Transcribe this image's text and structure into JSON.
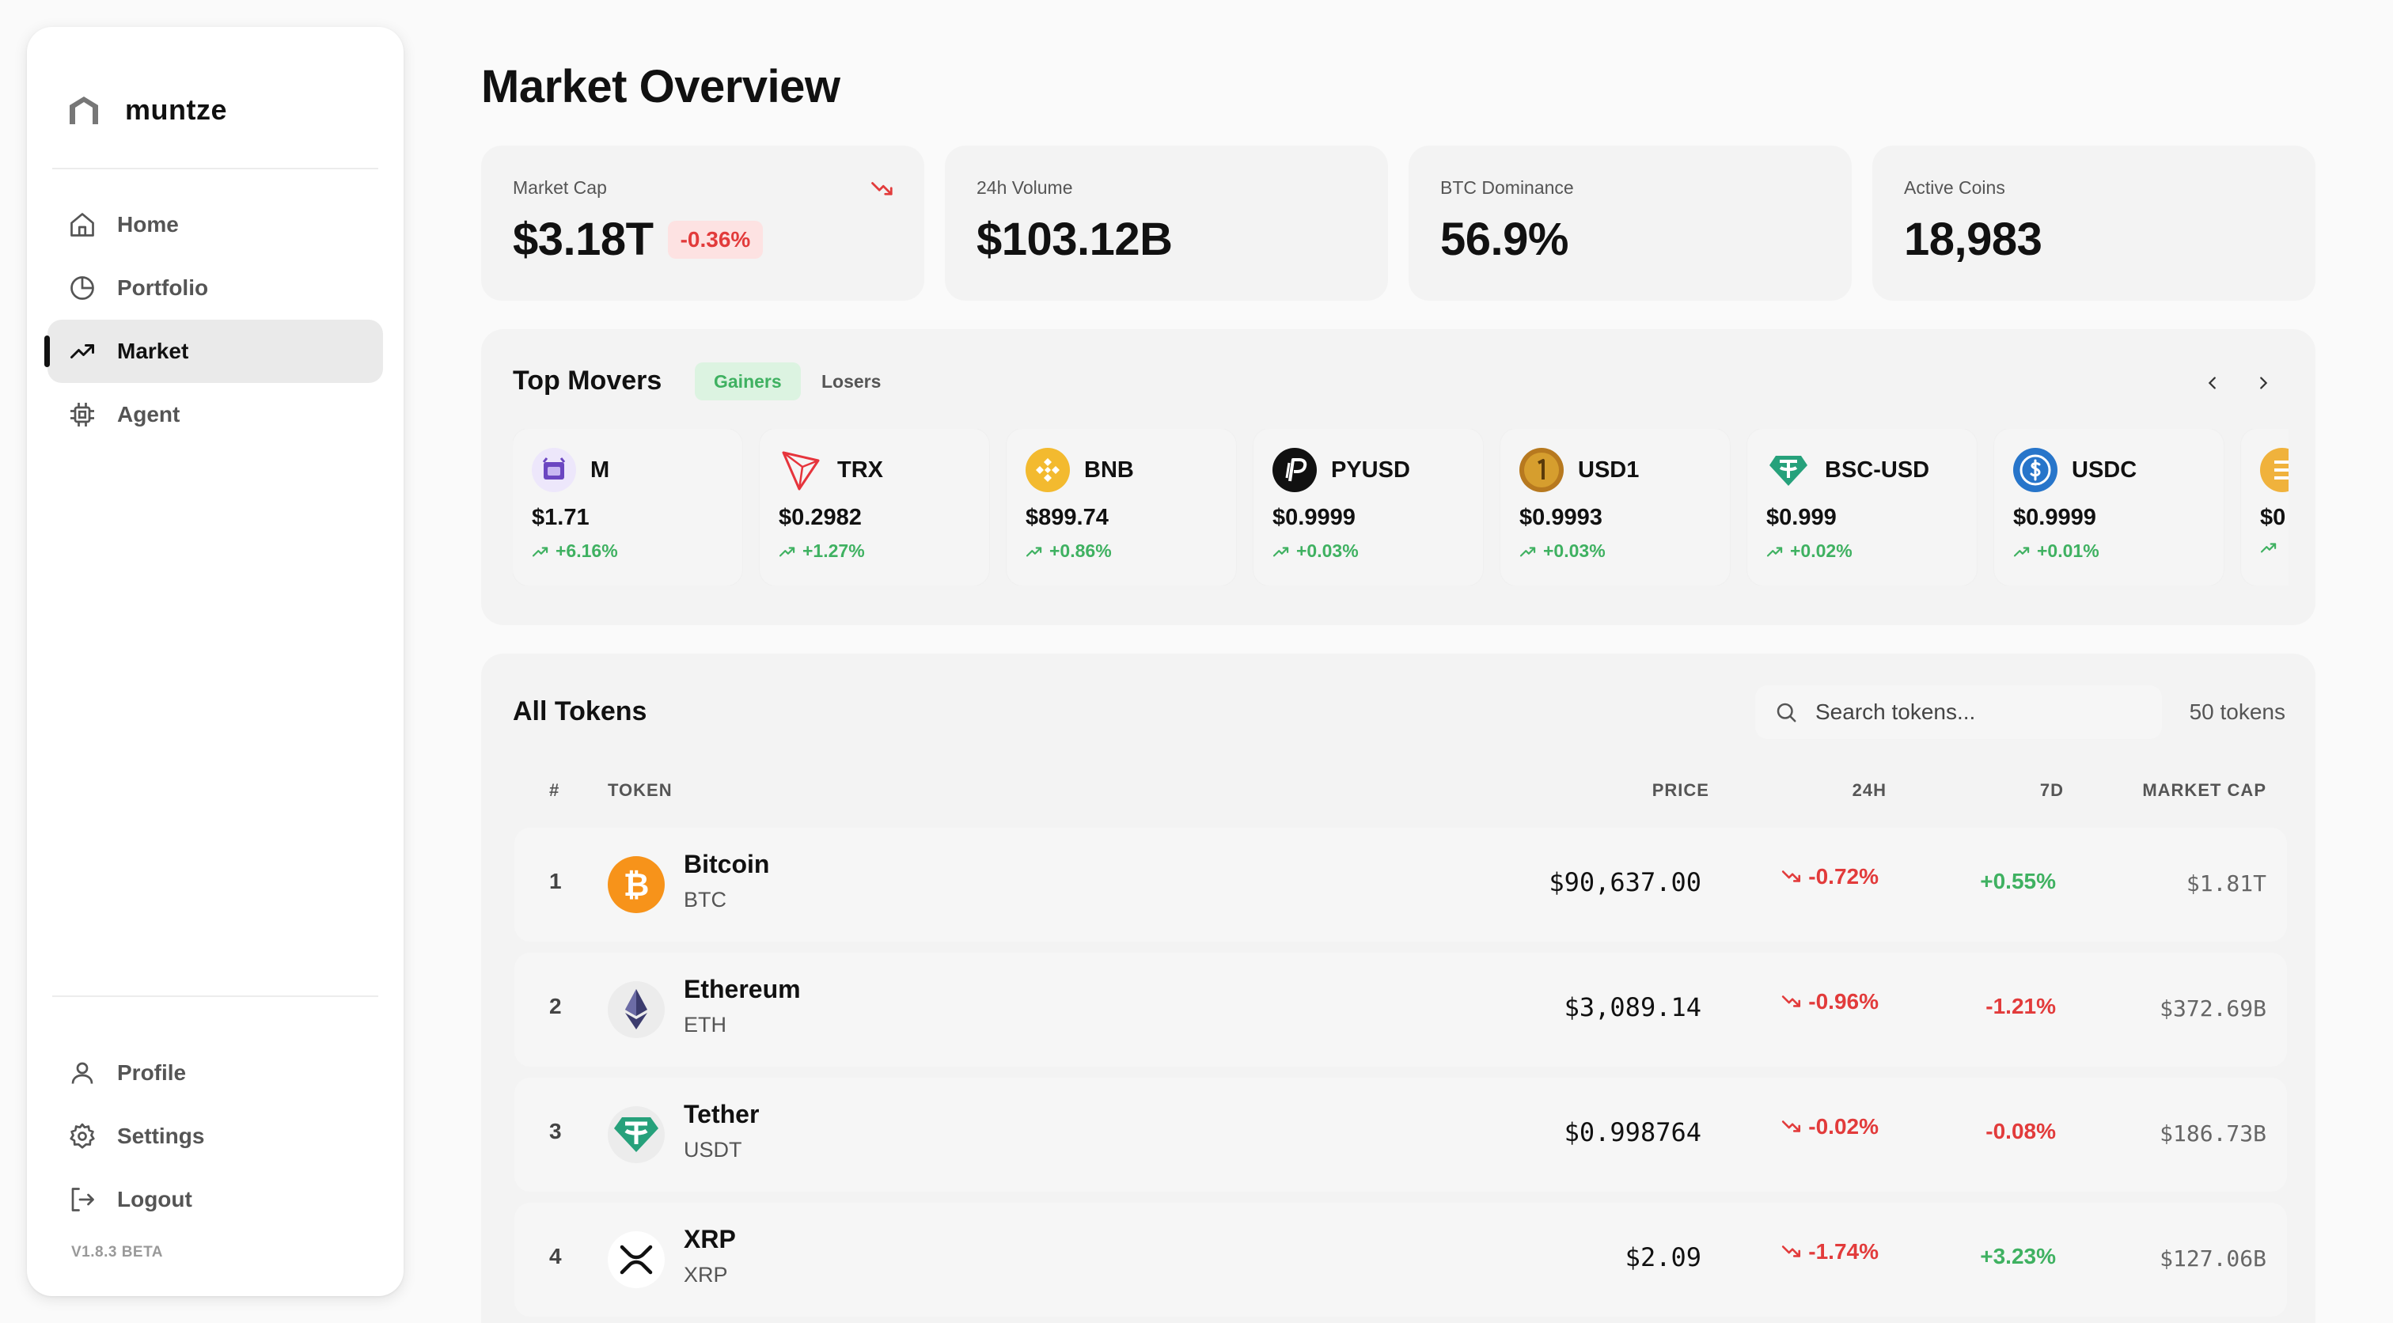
{
  "sidebar": {
    "brand": "muntze",
    "nav": [
      {
        "label": "Home",
        "icon": "home-icon"
      },
      {
        "label": "Portfolio",
        "icon": "pie-chart-icon"
      },
      {
        "label": "Market",
        "icon": "trending-up-icon",
        "active": true
      },
      {
        "label": "Agent",
        "icon": "chip-icon"
      }
    ],
    "bottom": [
      {
        "label": "Profile",
        "icon": "user-icon"
      },
      {
        "label": "Settings",
        "icon": "gear-icon"
      },
      {
        "label": "Logout",
        "icon": "logout-icon"
      }
    ],
    "version": "V1.8.3 BETA"
  },
  "header": {
    "title": "Market Overview"
  },
  "stats": [
    {
      "label": "Market Cap",
      "value": "$3.18T",
      "change": "-0.36%",
      "trend": "down"
    },
    {
      "label": "24h Volume",
      "value": "$103.12B"
    },
    {
      "label": "BTC Dominance",
      "value": "56.9%"
    },
    {
      "label": "Active Coins",
      "value": "18,983"
    }
  ],
  "movers": {
    "title": "Top Movers",
    "tabs": [
      "Gainers",
      "Losers"
    ],
    "active_tab": "Gainers",
    "items": [
      {
        "symbol": "M",
        "price": "$1.71",
        "change": "+6.16%"
      },
      {
        "symbol": "TRX",
        "price": "$0.2982",
        "change": "+1.27%"
      },
      {
        "symbol": "BNB",
        "price": "$899.74",
        "change": "+0.86%"
      },
      {
        "symbol": "PYUSD",
        "price": "$0.9999",
        "change": "+0.03%"
      },
      {
        "symbol": "USD1",
        "price": "$0.9993",
        "change": "+0.03%"
      },
      {
        "symbol": "BSC-USD",
        "price": "$0.999",
        "change": "+0.02%"
      },
      {
        "symbol": "USDC",
        "price": "$0.9999",
        "change": "+0.01%"
      },
      {
        "symbol": "",
        "price": "$0",
        "change": ""
      }
    ]
  },
  "tokens": {
    "title": "All Tokens",
    "search_placeholder": "Search tokens...",
    "count": "50 tokens",
    "columns": {
      "rank": "#",
      "token": "TOKEN",
      "price": "PRICE",
      "h24": "24H",
      "d7": "7D",
      "mcap": "MARKET CAP"
    },
    "rows": [
      {
        "rank": "1",
        "name": "Bitcoin",
        "symbol": "BTC",
        "price": "$90,637.00",
        "h24": "-0.72%",
        "d7": "+0.55%",
        "d7_dir": "up",
        "mcap": "$1.81T"
      },
      {
        "rank": "2",
        "name": "Ethereum",
        "symbol": "ETH",
        "price": "$3,089.14",
        "h24": "-0.96%",
        "d7": "-1.21%",
        "d7_dir": "down",
        "mcap": "$372.69B"
      },
      {
        "rank": "3",
        "name": "Tether",
        "symbol": "USDT",
        "price": "$0.998764",
        "h24": "-0.02%",
        "d7": "-0.08%",
        "d7_dir": "down",
        "mcap": "$186.73B"
      },
      {
        "rank": "4",
        "name": "XRP",
        "symbol": "XRP",
        "price": "$2.09",
        "h24": "-1.74%",
        "d7": "+3.23%",
        "d7_dir": "up",
        "mcap": "$127.06B"
      }
    ]
  },
  "colors": {
    "green": "#3fb161",
    "red": "#e23b3b",
    "accent_bg": "#dcf3e1"
  }
}
